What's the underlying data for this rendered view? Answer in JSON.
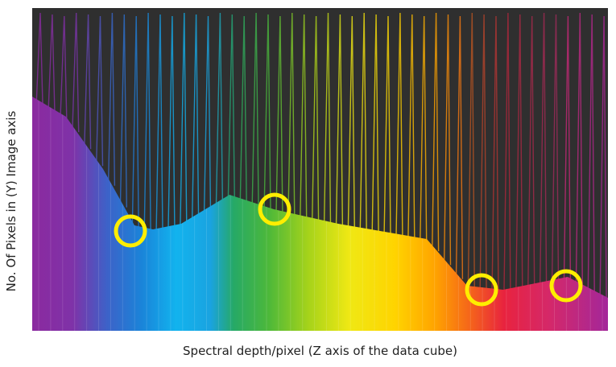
{
  "figure": {
    "x_axis_label": "Spectral depth/pixel (Z axis of the data cube)",
    "y_axis_label": "No. Of Pixels in (Y) Image axis"
  },
  "colors": {
    "background": "#2f2f2f",
    "highlight_circle": "#ffee00",
    "spectrum": [
      "#8e2aa0",
      "#7b3bb0",
      "#1e7fd6",
      "#12b3ee",
      "#2bb24a",
      "#9ad11c",
      "#f3ea12",
      "#ffb000",
      "#f06a12",
      "#e8234a",
      "#c42a7a",
      "#a3279a"
    ]
  },
  "highlights": [
    {
      "name": "highlight-circle-blue"
    },
    {
      "name": "highlight-circle-green"
    },
    {
      "name": "highlight-circle-red"
    },
    {
      "name": "highlight-circle-magenta"
    }
  ]
}
